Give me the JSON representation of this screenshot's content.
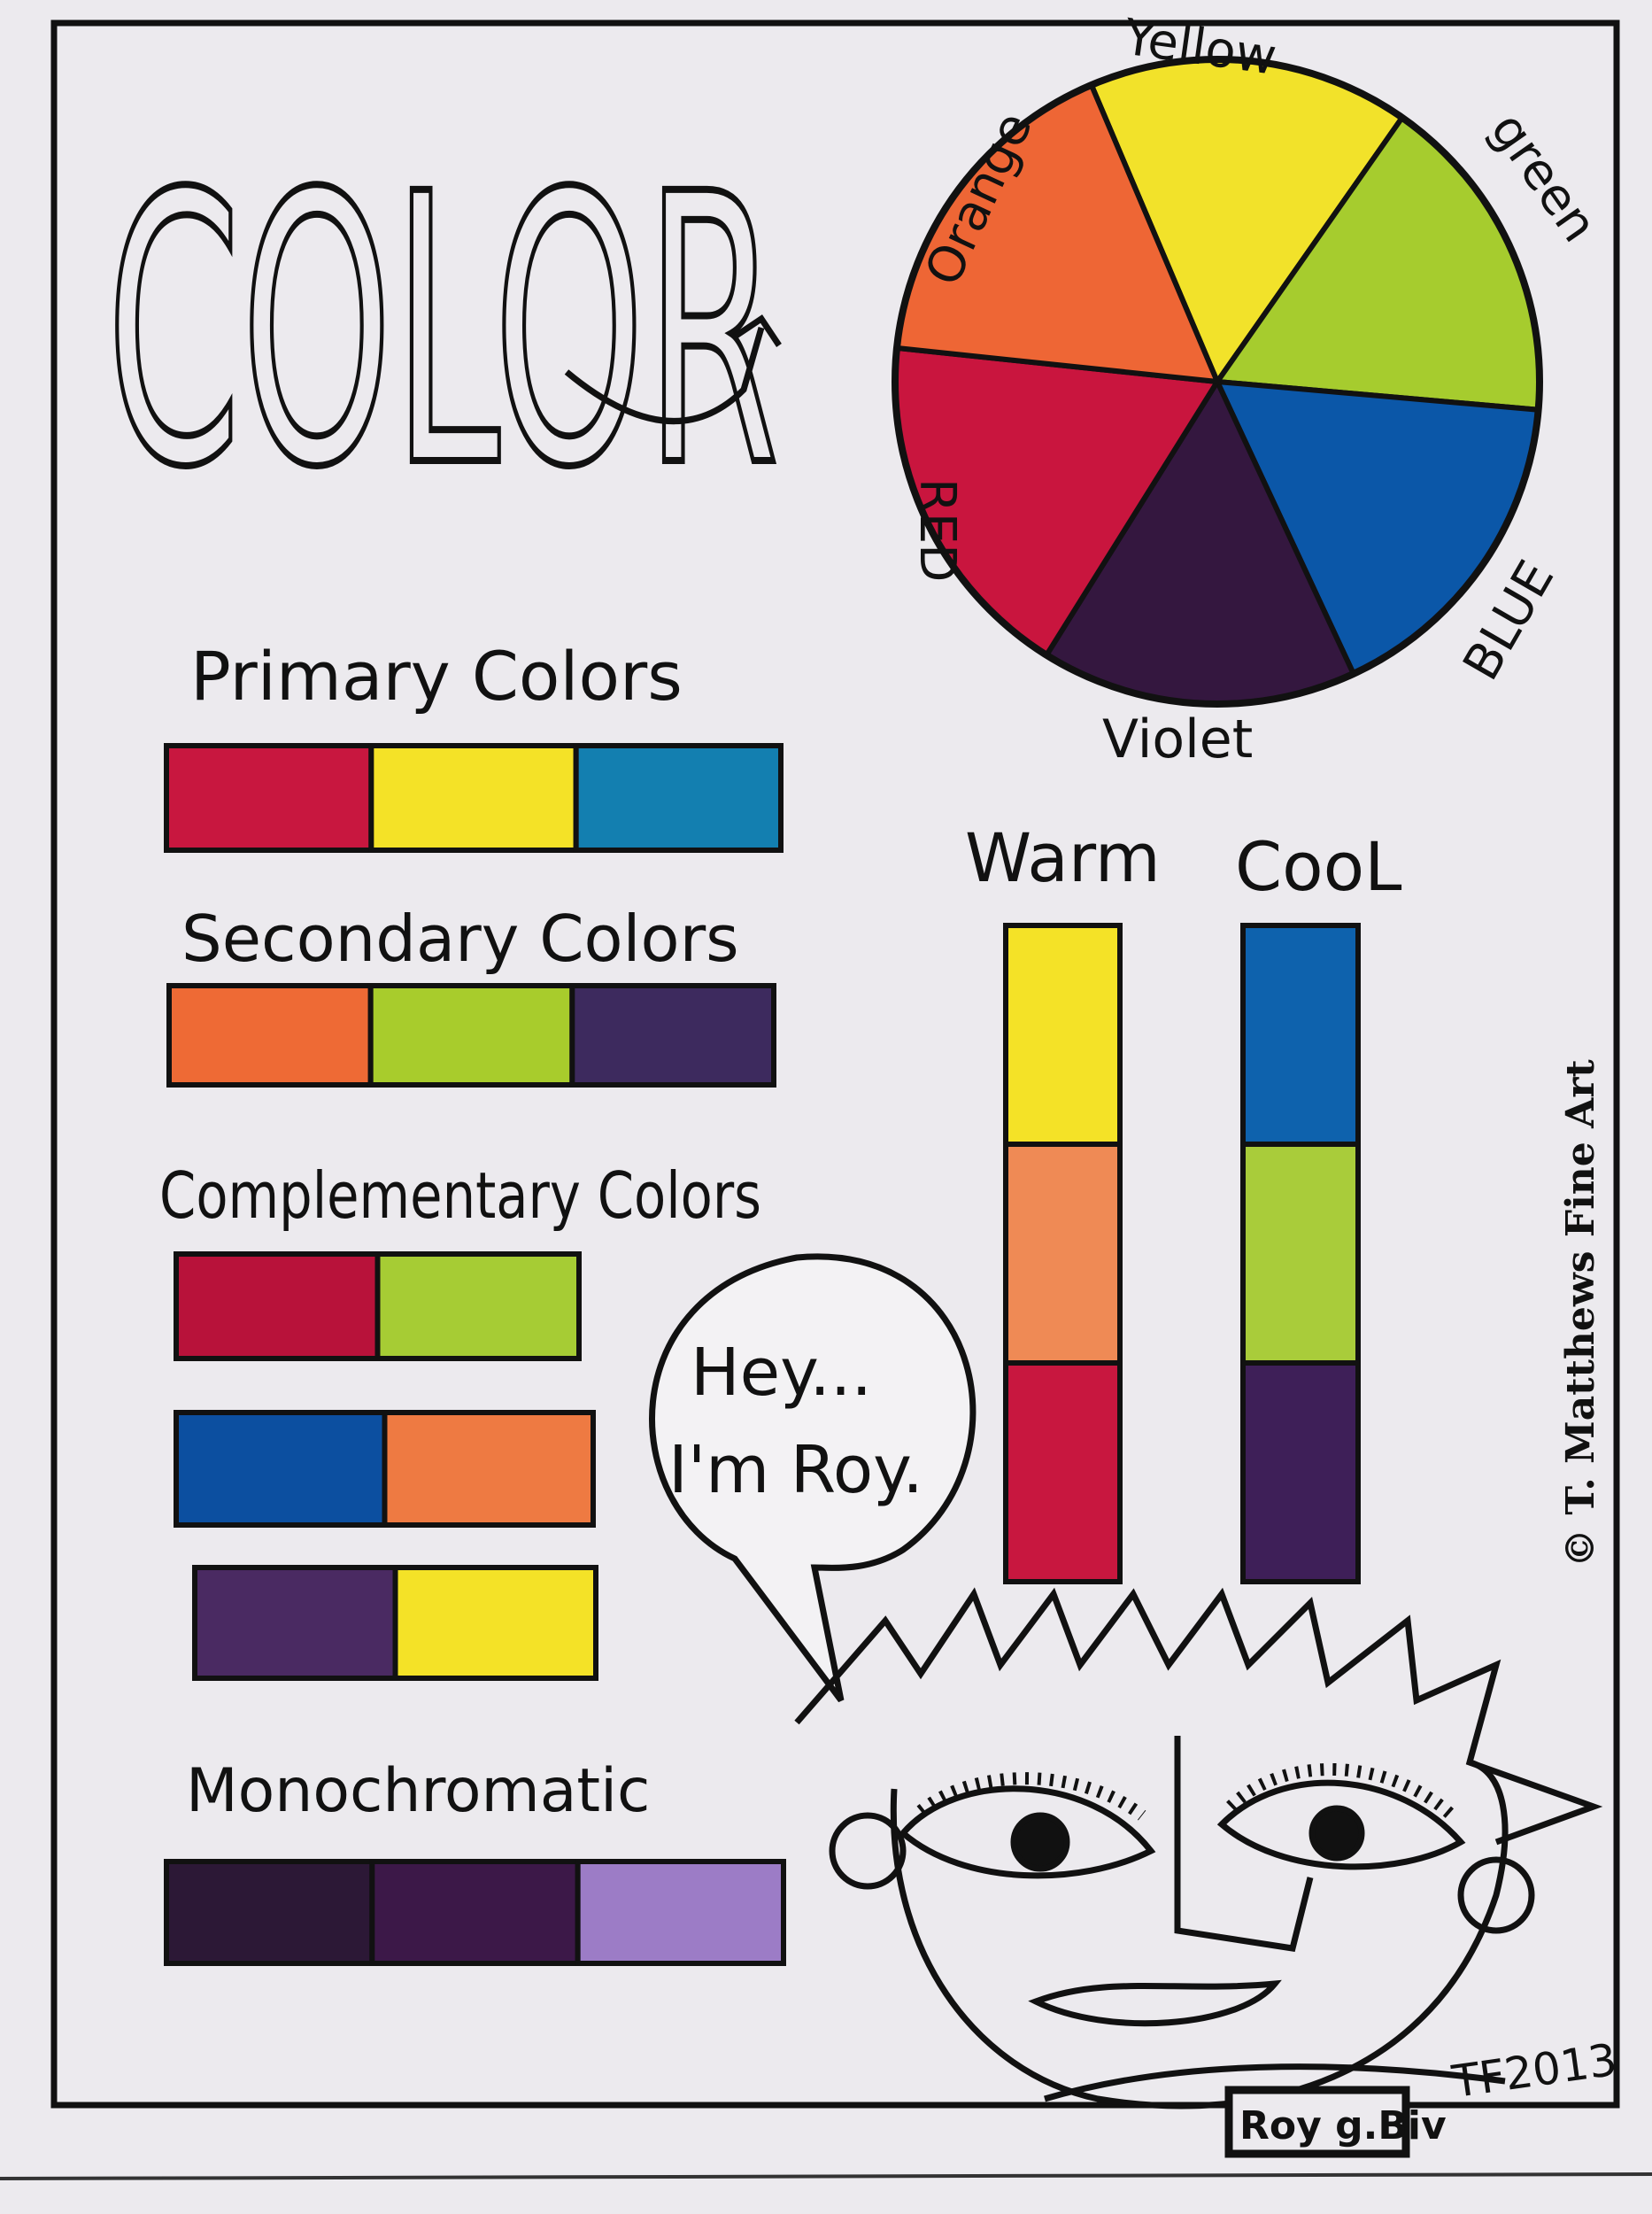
{
  "title": "COLOR",
  "wheel": {
    "slices": [
      {
        "label": "Yellow",
        "color": "#f2e22a",
        "from": -113,
        "to": -55
      },
      {
        "label": "green",
        "color": "#a6cc2e",
        "from": -55,
        "to": 5
      },
      {
        "label": "BLUE",
        "color": "#0b57a8",
        "from": 5,
        "to": 65
      },
      {
        "label": "Violet",
        "color": "#34173f",
        "from": 65,
        "to": 122
      },
      {
        "label": "RED",
        "color": "#c9153e",
        "from": 122,
        "to": 186
      },
      {
        "label": "Orange",
        "color": "#ee6635",
        "from": 186,
        "to": 247
      }
    ]
  },
  "sections": {
    "primary": {
      "title": "Primary Colors",
      "swatches": [
        "#c8173f",
        "#f4e227",
        "#137fb0"
      ]
    },
    "secondary": {
      "title": "Secondary Colors",
      "swatches": [
        "#ee6a35",
        "#a8cc2c",
        "#3d2a5e"
      ]
    },
    "complementary": {
      "title": "Complementary Colors",
      "pairs": [
        [
          "#b8123a",
          "#a6cc34"
        ],
        [
          "#0c4fa0",
          "#ee7a42"
        ],
        [
          "#4a2a62",
          "#f4e227"
        ]
      ]
    },
    "monochromatic": {
      "title": "Monochromatic",
      "swatches": [
        "#2c1836",
        "#3c1848",
        "#9c7cc6"
      ]
    },
    "warm": {
      "title": "Warm",
      "swatches": [
        "#f4e227",
        "#ef8a55",
        "#c8173f"
      ]
    },
    "cool": {
      "title": "CooL",
      "swatches": [
        "#0e62ad",
        "#a9cc3a",
        "#3e1f58"
      ]
    }
  },
  "speech": {
    "line1": "Hey...",
    "line2": "I'm Roy."
  },
  "copyright": "© T. Matthews Fine Art",
  "badge": "Roy g.Biv",
  "signature": "TF2013"
}
